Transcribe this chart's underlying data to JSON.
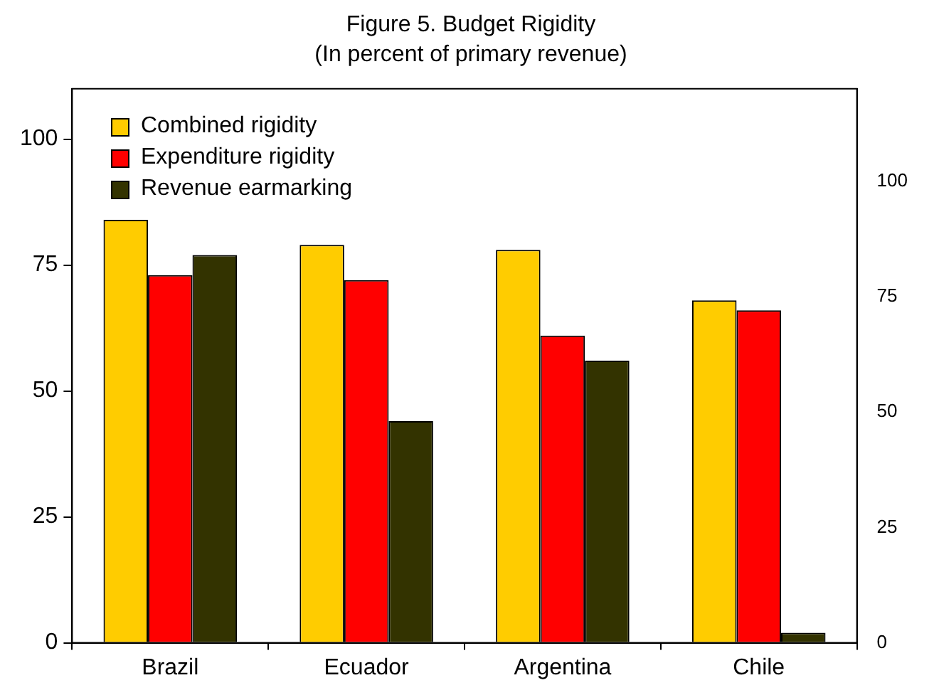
{
  "chart_data": {
    "type": "bar",
    "title": "Figure 5. Budget Rigidity",
    "subtitle": "(In percent of primary revenue)",
    "categories": [
      "Brazil",
      "Ecuador",
      "Argentina",
      "Chile"
    ],
    "series": [
      {
        "name": "Combined rigidity",
        "color": "#ffcc00",
        "values": [
          84,
          79,
          78,
          68
        ]
      },
      {
        "name": "Expenditure rigidity",
        "color": "#ff0000",
        "values": [
          73,
          72,
          61,
          66
        ]
      },
      {
        "name": "Revenue earmarking",
        "color": "#333300",
        "values": [
          77,
          44,
          56,
          2
        ]
      }
    ],
    "ylim": [
      0,
      110
    ],
    "yticks": [
      0,
      25,
      50,
      75,
      100
    ],
    "y2lim": [
      0,
      120
    ],
    "y2ticks": [
      0,
      25,
      50,
      75,
      100
    ],
    "grid": false,
    "legend": "top left"
  }
}
